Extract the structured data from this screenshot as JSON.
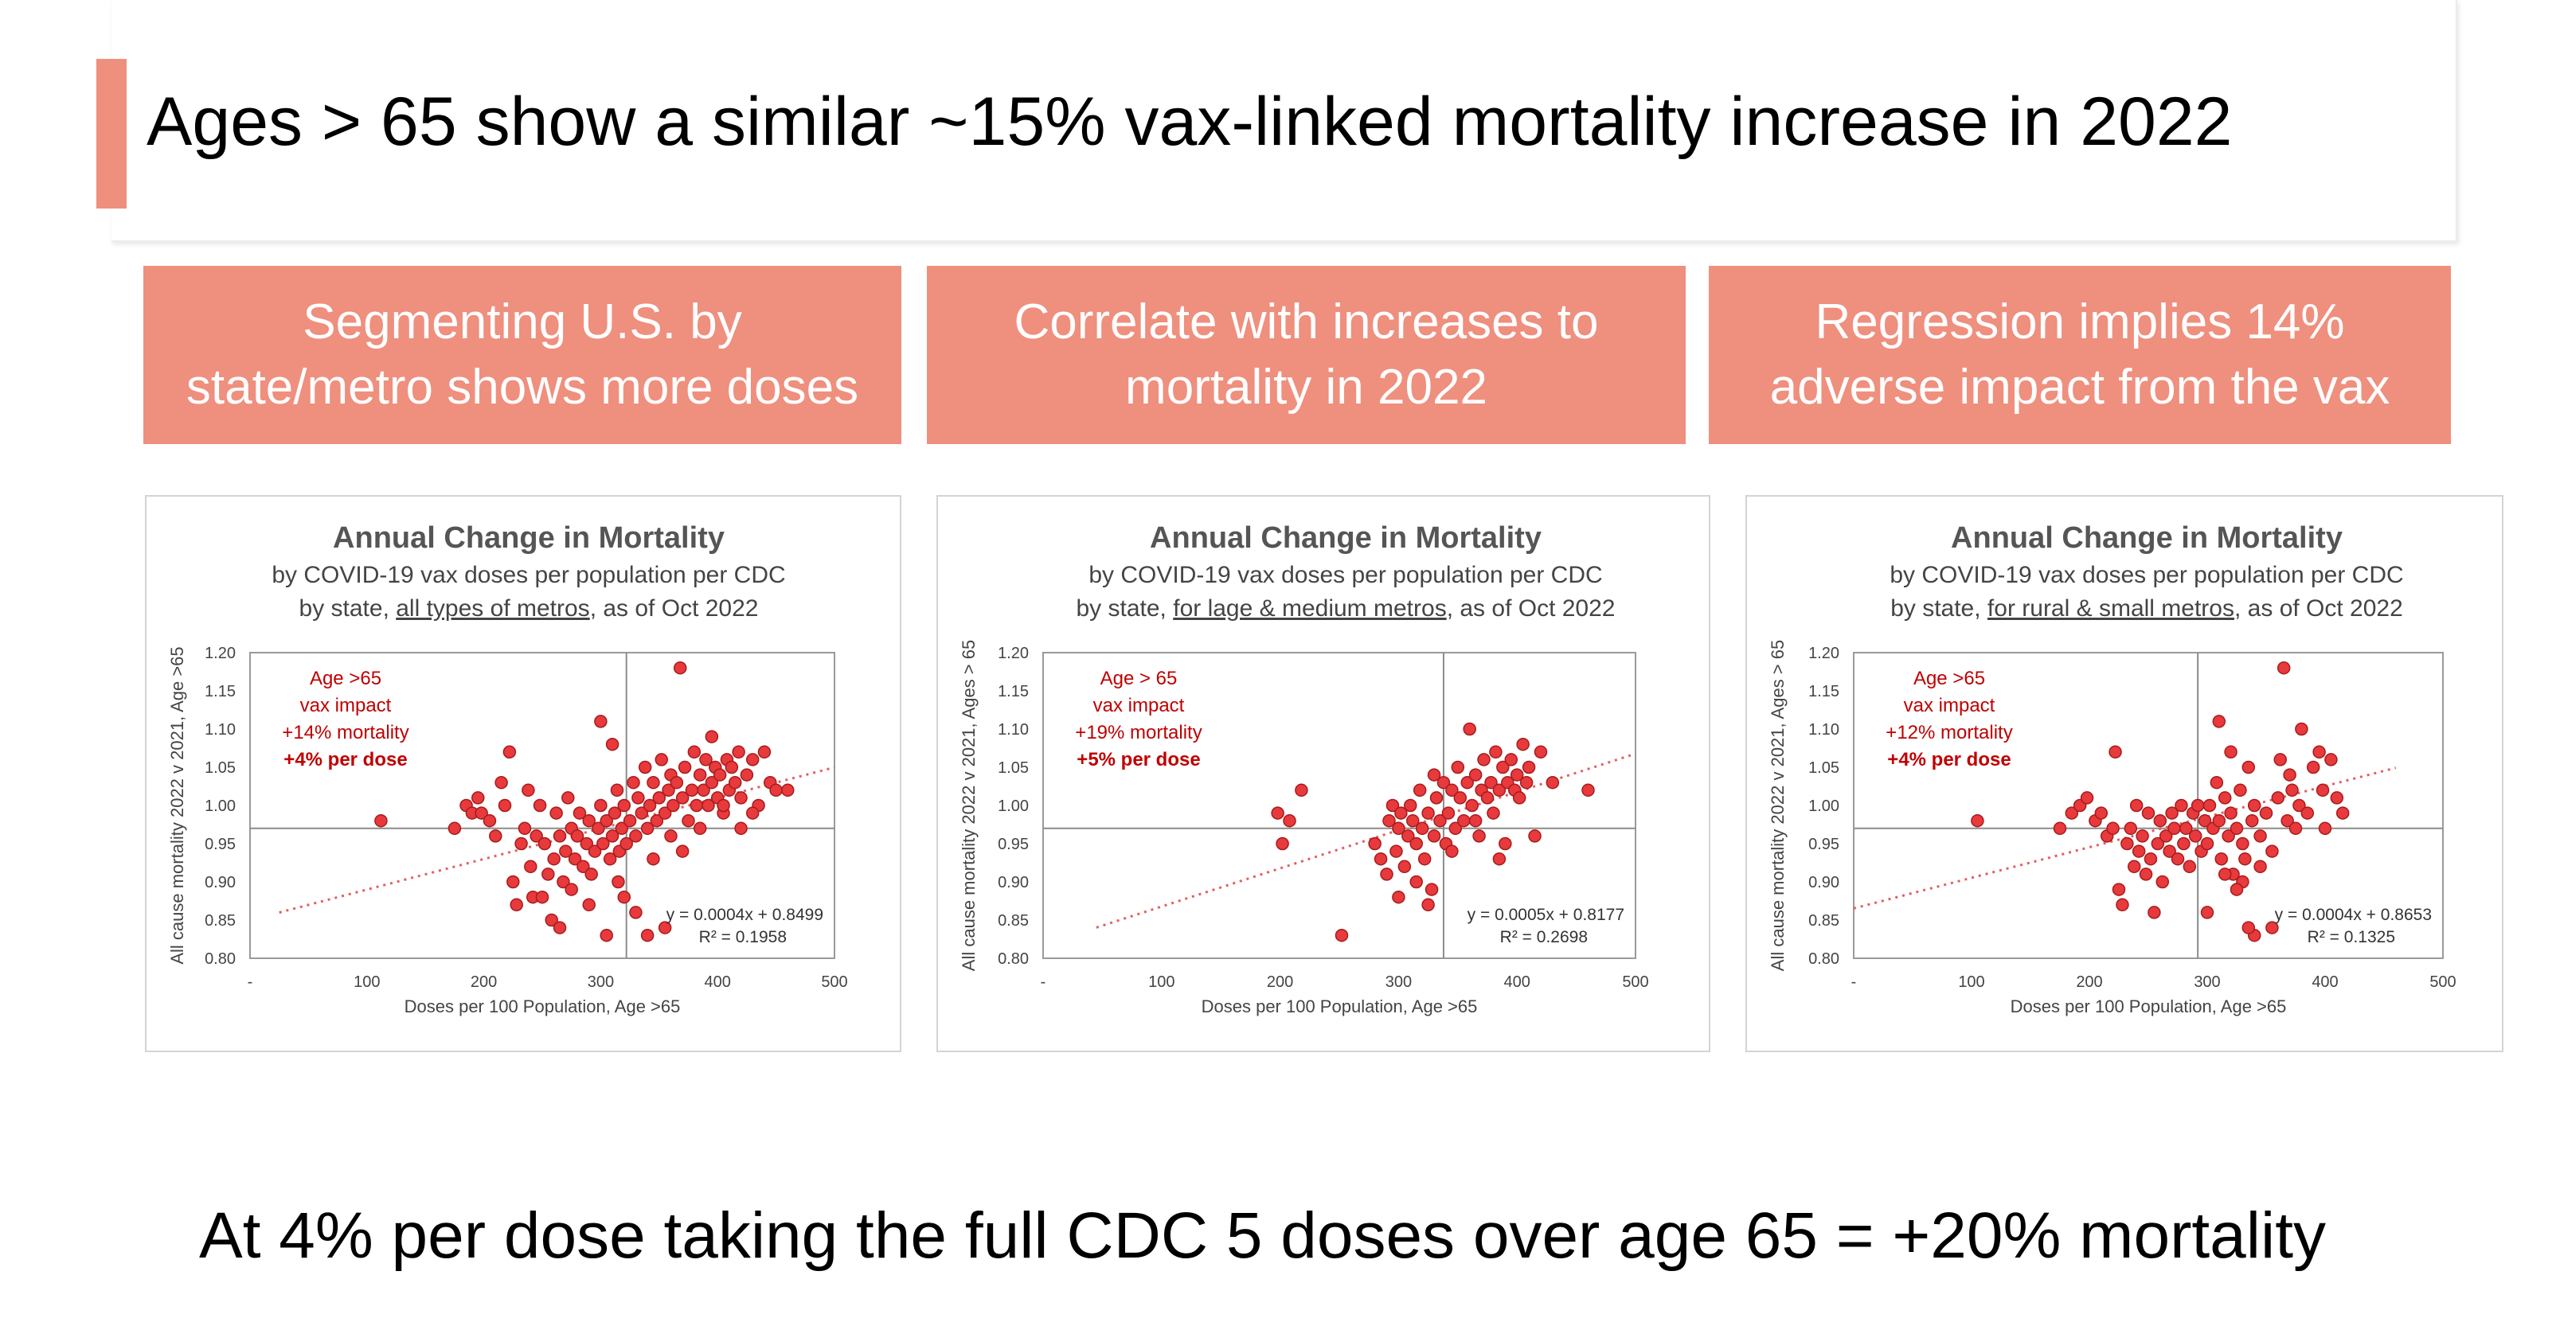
{
  "slide": {
    "title": "Ages > 65 show a similar ~15% vax-linked mortality increase in 2022",
    "footer": "At 4% per dose taking the full CDC 5 doses over age 65 = +20% mortality",
    "accent_color": "#ef8f7e"
  },
  "headers": [
    "Segmenting U.S. by\nstate/metro shows more doses",
    "Correlate with increases to\nmortality in 2022",
    "Regression implies 14%\nadverse impact from the vax"
  ],
  "chart_data": [
    {
      "type": "scatter",
      "title": "Annual Change in Mortality",
      "subtitle_1": "by COVID-19 vax doses per population per CDC",
      "subtitle_2_pre": "by state, ",
      "subtitle_2_link": "all types of metros",
      "subtitle_2_post": ", as of Oct 2022",
      "xlabel": "Doses per 100 Population, Age >65",
      "ylabel": "All cause mortality 2022 v 2021, Age >65",
      "xlim": [
        0,
        500
      ],
      "ylim": [
        0.8,
        1.2
      ],
      "xticks": [
        "-",
        "100",
        "200",
        "300",
        "400",
        "500"
      ],
      "yticks": [
        "0.80",
        "0.85",
        "0.90",
        "0.95",
        "1.00",
        "1.05",
        "1.10",
        "1.15",
        "1.20"
      ],
      "reference_lines": {
        "x": 322,
        "y": 0.97
      },
      "annotation": [
        "Age >65",
        "vax impact",
        "+14% mortality",
        "+4% per dose"
      ],
      "equation": "y = 0.0004x + 0.8499",
      "r2": "R² = 0.1958",
      "trend": {
        "slope": 0.0004,
        "intercept": 0.8499,
        "x_range": [
          25,
          500
        ]
      },
      "marker_color": "#e8393c",
      "points": [
        [
          112,
          0.98
        ],
        [
          175,
          0.97
        ],
        [
          185,
          1.0
        ],
        [
          190,
          0.99
        ],
        [
          195,
          1.01
        ],
        [
          198,
          0.99
        ],
        [
          205,
          0.98
        ],
        [
          210,
          0.96
        ],
        [
          215,
          1.03
        ],
        [
          218,
          1.0
        ],
        [
          222,
          1.07
        ],
        [
          225,
          0.9
        ],
        [
          228,
          0.87
        ],
        [
          232,
          0.95
        ],
        [
          235,
          0.97
        ],
        [
          238,
          1.02
        ],
        [
          240,
          0.92
        ],
        [
          242,
          0.88
        ],
        [
          245,
          0.96
        ],
        [
          248,
          1.0
        ],
        [
          252,
          0.95
        ],
        [
          255,
          0.91
        ],
        [
          258,
          0.85
        ],
        [
          260,
          0.93
        ],
        [
          262,
          0.99
        ],
        [
          265,
          0.96
        ],
        [
          268,
          0.9
        ],
        [
          270,
          0.94
        ],
        [
          272,
          1.01
        ],
        [
          275,
          0.97
        ],
        [
          278,
          0.93
        ],
        [
          280,
          0.96
        ],
        [
          282,
          0.99
        ],
        [
          285,
          0.92
        ],
        [
          288,
          0.95
        ],
        [
          290,
          0.98
        ],
        [
          292,
          0.91
        ],
        [
          295,
          0.94
        ],
        [
          298,
          0.97
        ],
        [
          300,
          1.0
        ],
        [
          302,
          0.95
        ],
        [
          305,
          0.98
        ],
        [
          308,
          0.93
        ],
        [
          310,
          0.96
        ],
        [
          312,
          0.99
        ],
        [
          314,
          1.02
        ],
        [
          316,
          0.94
        ],
        [
          318,
          0.97
        ],
        [
          320,
          1.0
        ],
        [
          322,
          0.95
        ],
        [
          325,
          0.98
        ],
        [
          328,
          1.03
        ],
        [
          330,
          0.96
        ],
        [
          332,
          1.01
        ],
        [
          335,
          0.99
        ],
        [
          338,
          1.05
        ],
        [
          340,
          0.97
        ],
        [
          342,
          1.0
        ],
        [
          345,
          1.03
        ],
        [
          348,
          0.98
        ],
        [
          350,
          1.01
        ],
        [
          352,
          1.06
        ],
        [
          355,
          0.99
        ],
        [
          358,
          1.02
        ],
        [
          360,
          1.04
        ],
        [
          362,
          1.0
        ],
        [
          365,
          1.03
        ],
        [
          368,
          1.18
        ],
        [
          370,
          1.01
        ],
        [
          372,
          1.05
        ],
        [
          375,
          0.98
        ],
        [
          378,
          1.02
        ],
        [
          380,
          1.07
        ],
        [
          382,
          1.0
        ],
        [
          385,
          1.04
        ],
        [
          388,
          1.02
        ],
        [
          390,
          1.06
        ],
        [
          392,
          1.0
        ],
        [
          395,
          1.03
        ],
        [
          398,
          1.05
        ],
        [
          400,
          1.01
        ],
        [
          402,
          1.04
        ],
        [
          405,
          0.99
        ],
        [
          408,
          1.06
        ],
        [
          410,
          1.02
        ],
        [
          412,
          1.05
        ],
        [
          415,
          1.03
        ],
        [
          418,
          1.07
        ],
        [
          420,
          1.01
        ],
        [
          425,
          1.04
        ],
        [
          430,
          1.06
        ],
        [
          435,
          1.0
        ],
        [
          440,
          1.07
        ],
        [
          445,
          1.03
        ],
        [
          450,
          1.02
        ],
        [
          460,
          1.02
        ],
        [
          300,
          1.11
        ],
        [
          310,
          1.08
        ],
        [
          330,
          0.86
        ],
        [
          340,
          0.83
        ],
        [
          355,
          0.84
        ],
        [
          290,
          0.87
        ],
        [
          305,
          0.83
        ],
        [
          315,
          0.9
        ],
        [
          320,
          0.88
        ],
        [
          275,
          0.89
        ],
        [
          265,
          0.84
        ],
        [
          250,
          0.88
        ],
        [
          345,
          0.93
        ],
        [
          360,
          0.96
        ],
        [
          370,
          0.94
        ],
        [
          385,
          0.97
        ],
        [
          395,
          1.09
        ],
        [
          405,
          1.0
        ],
        [
          420,
          0.97
        ],
        [
          430,
          0.99
        ]
      ]
    },
    {
      "type": "scatter",
      "title": "Annual Change in Mortality",
      "subtitle_1": "by COVID-19 vax doses per population per CDC",
      "subtitle_2_pre": "by state, ",
      "subtitle_2_link": "for lage & medium metros",
      "subtitle_2_post": ", as of Oct 2022",
      "xlabel": "Doses per 100 Population, Age >65",
      "ylabel": "All cause mortality 2022 v 2021, Ages > 65",
      "xlim": [
        0,
        500
      ],
      "ylim": [
        0.8,
        1.2
      ],
      "xticks": [
        "-",
        "100",
        "200",
        "300",
        "400",
        "500"
      ],
      "yticks": [
        "0.80",
        "0.85",
        "0.90",
        "0.95",
        "1.00",
        "1.05",
        "1.10",
        "1.15",
        "1.20"
      ],
      "reference_lines": {
        "x": 338,
        "y": 0.97
      },
      "annotation": [
        "Age > 65",
        "vax impact",
        "+19% mortality",
        "+5% per dose"
      ],
      "equation": "y = 0.0005x + 0.8177",
      "r2": "R² = 0.2698",
      "trend": {
        "slope": 0.0005,
        "intercept": 0.8177,
        "x_range": [
          45,
          500
        ]
      },
      "marker_color": "#e8393c",
      "points": [
        [
          198,
          0.99
        ],
        [
          202,
          0.95
        ],
        [
          208,
          0.98
        ],
        [
          218,
          1.02
        ],
        [
          252,
          0.83
        ],
        [
          280,
          0.95
        ],
        [
          285,
          0.93
        ],
        [
          290,
          0.91
        ],
        [
          292,
          0.98
        ],
        [
          295,
          1.0
        ],
        [
          298,
          0.94
        ],
        [
          300,
          0.97
        ],
        [
          302,
          0.99
        ],
        [
          305,
          0.92
        ],
        [
          308,
          0.96
        ],
        [
          310,
          1.0
        ],
        [
          312,
          0.98
        ],
        [
          315,
          0.95
        ],
        [
          318,
          1.02
        ],
        [
          320,
          0.97
        ],
        [
          322,
          0.93
        ],
        [
          325,
          0.99
        ],
        [
          328,
          0.89
        ],
        [
          330,
          0.96
        ],
        [
          332,
          1.01
        ],
        [
          335,
          0.98
        ],
        [
          338,
          1.03
        ],
        [
          340,
          0.95
        ],
        [
          342,
          0.99
        ],
        [
          345,
          1.02
        ],
        [
          348,
          0.97
        ],
        [
          350,
          1.05
        ],
        [
          352,
          1.01
        ],
        [
          355,
          0.98
        ],
        [
          358,
          1.03
        ],
        [
          360,
          1.1
        ],
        [
          362,
          1.0
        ],
        [
          365,
          1.04
        ],
        [
          368,
          0.96
        ],
        [
          370,
          1.02
        ],
        [
          372,
          1.06
        ],
        [
          375,
          1.01
        ],
        [
          378,
          1.03
        ],
        [
          380,
          0.99
        ],
        [
          382,
          1.07
        ],
        [
          385,
          1.02
        ],
        [
          388,
          1.05
        ],
        [
          390,
          0.95
        ],
        [
          392,
          1.03
        ],
        [
          395,
          1.06
        ],
        [
          398,
          1.02
        ],
        [
          400,
          1.04
        ],
        [
          402,
          1.01
        ],
        [
          405,
          1.08
        ],
        [
          408,
          1.03
        ],
        [
          410,
          1.05
        ],
        [
          415,
          0.96
        ],
        [
          420,
          1.07
        ],
        [
          430,
          1.03
        ],
        [
          460,
          1.02
        ],
        [
          300,
          0.88
        ],
        [
          315,
          0.9
        ],
        [
          325,
          0.87
        ],
        [
          345,
          0.94
        ],
        [
          365,
          0.98
        ],
        [
          385,
          0.93
        ],
        [
          330,
          1.04
        ]
      ]
    },
    {
      "type": "scatter",
      "title": "Annual Change in Mortality",
      "subtitle_1": "by COVID-19 vax doses per population per CDC",
      "subtitle_2_pre": "by state, ",
      "subtitle_2_link": "for rural & small metros",
      "subtitle_2_post": ", as of Oct 2022",
      "xlabel": "Doses per 100 Population, Age >65",
      "ylabel": "All cause mortality 2022 v 2021, Ages > 65",
      "xlim": [
        0,
        500
      ],
      "ylim": [
        0.8,
        1.2
      ],
      "xticks": [
        "-",
        "100",
        "200",
        "300",
        "400",
        "500"
      ],
      "yticks": [
        "0.80",
        "0.85",
        "0.90",
        "0.95",
        "1.00",
        "1.05",
        "1.10",
        "1.15",
        "1.20"
      ],
      "reference_lines": {
        "x": 292,
        "y": 0.97
      },
      "annotation": [
        "Age >65",
        "vax impact",
        "+12% mortality",
        "+4% per dose"
      ],
      "equation": "y = 0.0004x + 0.8653",
      "r2": "R² = 0.1325",
      "trend": {
        "slope": 0.0004,
        "intercept": 0.8653,
        "x_range": [
          0,
          460
        ]
      },
      "marker_color": "#e8393c",
      "points": [
        [
          105,
          0.98
        ],
        [
          175,
          0.97
        ],
        [
          185,
          0.99
        ],
        [
          192,
          1.0
        ],
        [
          198,
          1.01
        ],
        [
          205,
          0.98
        ],
        [
          210,
          0.99
        ],
        [
          215,
          0.96
        ],
        [
          220,
          0.97
        ],
        [
          222,
          1.07
        ],
        [
          225,
          0.89
        ],
        [
          228,
          0.87
        ],
        [
          232,
          0.95
        ],
        [
          235,
          0.97
        ],
        [
          238,
          0.92
        ],
        [
          240,
          1.0
        ],
        [
          242,
          0.94
        ],
        [
          245,
          0.96
        ],
        [
          248,
          0.91
        ],
        [
          250,
          0.99
        ],
        [
          252,
          0.93
        ],
        [
          255,
          0.86
        ],
        [
          258,
          0.95
        ],
        [
          260,
          0.98
        ],
        [
          262,
          0.9
        ],
        [
          265,
          0.96
        ],
        [
          268,
          0.94
        ],
        [
          270,
          0.99
        ],
        [
          272,
          0.97
        ],
        [
          275,
          0.93
        ],
        [
          278,
          1.0
        ],
        [
          280,
          0.95
        ],
        [
          282,
          0.97
        ],
        [
          285,
          0.92
        ],
        [
          288,
          0.99
        ],
        [
          290,
          0.96
        ],
        [
          292,
          1.0
        ],
        [
          295,
          0.94
        ],
        [
          298,
          0.98
        ],
        [
          300,
          0.95
        ],
        [
          302,
          1.0
        ],
        [
          305,
          0.97
        ],
        [
          308,
          1.03
        ],
        [
          310,
          0.98
        ],
        [
          312,
          0.93
        ],
        [
          315,
          1.01
        ],
        [
          318,
          0.96
        ],
        [
          320,
          0.99
        ],
        [
          322,
          0.91
        ],
        [
          325,
          0.97
        ],
        [
          328,
          1.02
        ],
        [
          330,
          0.95
        ],
        [
          332,
          0.93
        ],
        [
          335,
          1.05
        ],
        [
          338,
          0.98
        ],
        [
          340,
          1.0
        ],
        [
          345,
          0.96
        ],
        [
          350,
          0.99
        ],
        [
          355,
          0.94
        ],
        [
          360,
          1.01
        ],
        [
          362,
          1.06
        ],
        [
          365,
          1.18
        ],
        [
          368,
          0.98
        ],
        [
          370,
          1.04
        ],
        [
          372,
          1.02
        ],
        [
          375,
          0.97
        ],
        [
          378,
          1.0
        ],
        [
          380,
          1.1
        ],
        [
          385,
          0.99
        ],
        [
          390,
          1.05
        ],
        [
          395,
          1.07
        ],
        [
          398,
          1.02
        ],
        [
          400,
          0.97
        ],
        [
          405,
          1.06
        ],
        [
          410,
          1.01
        ],
        [
          415,
          0.99
        ],
        [
          310,
          1.11
        ],
        [
          320,
          1.07
        ],
        [
          330,
          0.9
        ],
        [
          340,
          0.83
        ],
        [
          355,
          0.84
        ],
        [
          300,
          0.86
        ],
        [
          315,
          0.91
        ],
        [
          325,
          0.89
        ],
        [
          335,
          0.84
        ],
        [
          345,
          0.92
        ]
      ]
    }
  ]
}
